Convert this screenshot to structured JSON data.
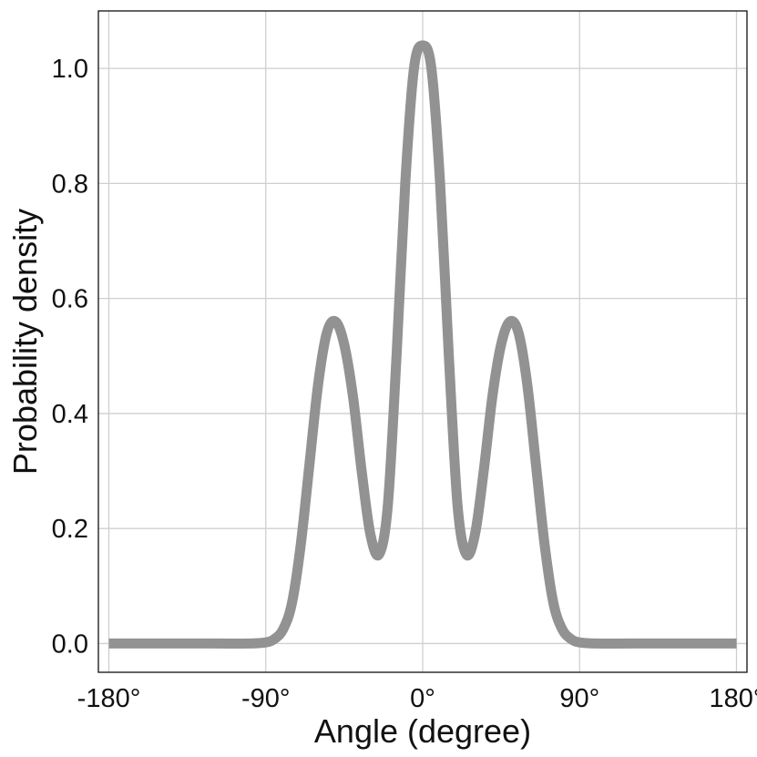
{
  "chart_data": {
    "type": "line",
    "xlabel": "Angle (degree)",
    "ylabel": "Probability density",
    "xlim": [
      -186,
      186
    ],
    "ylim": [
      -0.05,
      1.1
    ],
    "x_ticks": [
      -180,
      -90,
      0,
      90,
      180
    ],
    "x_tick_labels": [
      "-180°",
      "-90°",
      "0°",
      "90°",
      "180°"
    ],
    "y_ticks": [
      0.0,
      0.2,
      0.4,
      0.6,
      0.8,
      1.0
    ],
    "y_tick_labels": [
      "0.0",
      "0.2",
      "0.4",
      "0.6",
      "0.8",
      "1.0"
    ],
    "grid": true,
    "series": [
      {
        "color": "#929292",
        "x": [
          -180,
          -150,
          -120,
          -100,
          -90,
          -85,
          -80,
          -75,
          -70,
          -65,
          -60,
          -55,
          -50,
          -45,
          -40,
          -35,
          -30,
          -25,
          -20,
          -15,
          -10,
          -5,
          0,
          5,
          10,
          15,
          20,
          25,
          30,
          35,
          40,
          45,
          50,
          55,
          60,
          65,
          70,
          75,
          80,
          85,
          90,
          100,
          120,
          150,
          180
        ],
        "y": [
          0.0,
          0.0,
          0.0,
          0.0,
          0.002,
          0.008,
          0.025,
          0.07,
          0.17,
          0.31,
          0.45,
          0.54,
          0.56,
          0.52,
          0.43,
          0.3,
          0.19,
          0.155,
          0.24,
          0.5,
          0.8,
          1.0,
          1.04,
          1.0,
          0.8,
          0.5,
          0.24,
          0.155,
          0.19,
          0.3,
          0.43,
          0.52,
          0.56,
          0.54,
          0.45,
          0.31,
          0.17,
          0.07,
          0.025,
          0.008,
          0.002,
          0.0,
          0.0,
          0.0,
          0.0
        ]
      }
    ]
  }
}
